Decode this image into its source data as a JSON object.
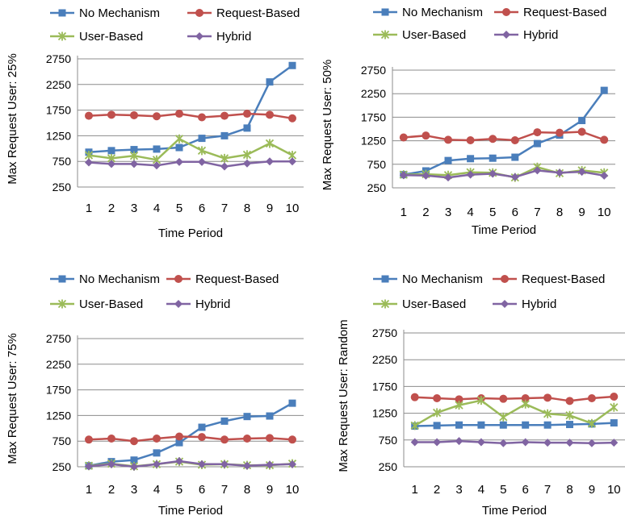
{
  "chart_data": [
    {
      "type": "line",
      "title": "",
      "xlabel": "Time Period",
      "ylabel": "Max Request User: 25%",
      "x": [
        1,
        2,
        3,
        4,
        5,
        6,
        7,
        8,
        9,
        10
      ],
      "yticks": [
        250,
        750,
        1250,
        1750,
        2250,
        2750
      ],
      "ylim": [
        250,
        2750
      ],
      "grid": true,
      "legend": "top",
      "series": [
        {
          "name": "No Mechanism",
          "color": "#4a7ebb",
          "marker": "square",
          "values": [
            930,
            960,
            980,
            990,
            1020,
            1200,
            1250,
            1400,
            2300,
            2620
          ]
        },
        {
          "name": "Request-Based",
          "color": "#c0504d",
          "marker": "circle",
          "values": [
            1640,
            1660,
            1650,
            1630,
            1680,
            1610,
            1640,
            1680,
            1660,
            1590
          ]
        },
        {
          "name": "User-Based",
          "color": "#9bbb59",
          "marker": "star",
          "values": [
            870,
            810,
            860,
            780,
            1190,
            960,
            810,
            880,
            1100,
            870
          ]
        },
        {
          "name": "Hybrid",
          "color": "#8064a2",
          "marker": "diamond",
          "values": [
            730,
            700,
            700,
            670,
            740,
            740,
            650,
            710,
            750,
            750
          ]
        }
      ]
    },
    {
      "type": "line",
      "title": "",
      "xlabel": "Time  Period",
      "ylabel": "Max Request User: 50%",
      "x": [
        1,
        2,
        3,
        4,
        5,
        6,
        7,
        8,
        9,
        10
      ],
      "yticks": [
        250,
        750,
        1250,
        1750,
        2250,
        2750
      ],
      "ylim": [
        250,
        2750
      ],
      "grid": true,
      "legend": "top",
      "series": [
        {
          "name": "No Mechanism",
          "color": "#4a7ebb",
          "marker": "square",
          "values": [
            530,
            610,
            830,
            870,
            880,
            900,
            1190,
            1370,
            1680,
            2320
          ]
        },
        {
          "name": "Request-Based",
          "color": "#c0504d",
          "marker": "circle",
          "values": [
            1320,
            1360,
            1270,
            1260,
            1290,
            1260,
            1430,
            1420,
            1440,
            1270
          ]
        },
        {
          "name": "User-Based",
          "color": "#9bbb59",
          "marker": "star",
          "values": [
            530,
            540,
            520,
            580,
            570,
            470,
            690,
            560,
            620,
            570
          ]
        },
        {
          "name": "Hybrid",
          "color": "#8064a2",
          "marker": "diamond",
          "values": [
            520,
            510,
            470,
            530,
            550,
            480,
            620,
            570,
            590,
            510
          ]
        }
      ]
    },
    {
      "type": "line",
      "title": "",
      "xlabel": "Time Period",
      "ylabel": "Max Request User: 75%",
      "x": [
        1,
        2,
        3,
        4,
        5,
        6,
        7,
        8,
        9,
        10
      ],
      "yticks": [
        250,
        750,
        1250,
        1750,
        2250,
        2750
      ],
      "ylim": [
        250,
        2750
      ],
      "grid": true,
      "legend": "top",
      "series": [
        {
          "name": "No Mechanism",
          "color": "#4a7ebb",
          "marker": "square",
          "values": [
            270,
            350,
            380,
            520,
            720,
            1020,
            1140,
            1230,
            1240,
            1490
          ]
        },
        {
          "name": "Request-Based",
          "color": "#c0504d",
          "marker": "circle",
          "values": [
            780,
            800,
            750,
            800,
            840,
            830,
            780,
            800,
            810,
            780
          ]
        },
        {
          "name": "User-Based",
          "color": "#9bbb59",
          "marker": "star",
          "values": [
            270,
            310,
            260,
            300,
            350,
            290,
            300,
            280,
            280,
            310
          ]
        },
        {
          "name": "Hybrid",
          "color": "#8064a2",
          "marker": "diamond",
          "values": [
            260,
            300,
            250,
            300,
            360,
            300,
            300,
            270,
            290,
            300
          ]
        }
      ]
    },
    {
      "type": "line",
      "title": "",
      "xlabel": "Time Period",
      "ylabel": "Max Request User: Random",
      "x": [
        1,
        2,
        3,
        4,
        5,
        6,
        7,
        8,
        9,
        10
      ],
      "yticks": [
        250,
        750,
        1250,
        1750,
        2250,
        2750
      ],
      "ylim": [
        250,
        2750
      ],
      "grid": true,
      "legend": "top",
      "series": [
        {
          "name": "No Mechanism",
          "color": "#4a7ebb",
          "marker": "square",
          "values": [
            1010,
            1020,
            1030,
            1030,
            1030,
            1030,
            1030,
            1040,
            1050,
            1070
          ]
        },
        {
          "name": "Request-Based",
          "color": "#c0504d",
          "marker": "circle",
          "values": [
            1550,
            1530,
            1510,
            1530,
            1520,
            1530,
            1540,
            1480,
            1530,
            1560
          ]
        },
        {
          "name": "User-Based",
          "color": "#9bbb59",
          "marker": "star",
          "values": [
            1020,
            1260,
            1400,
            1490,
            1180,
            1420,
            1240,
            1210,
            1060,
            1360
          ]
        },
        {
          "name": "Hybrid",
          "color": "#8064a2",
          "marker": "diamond",
          "values": [
            710,
            710,
            730,
            710,
            690,
            710,
            700,
            700,
            690,
            700
          ]
        }
      ]
    }
  ]
}
